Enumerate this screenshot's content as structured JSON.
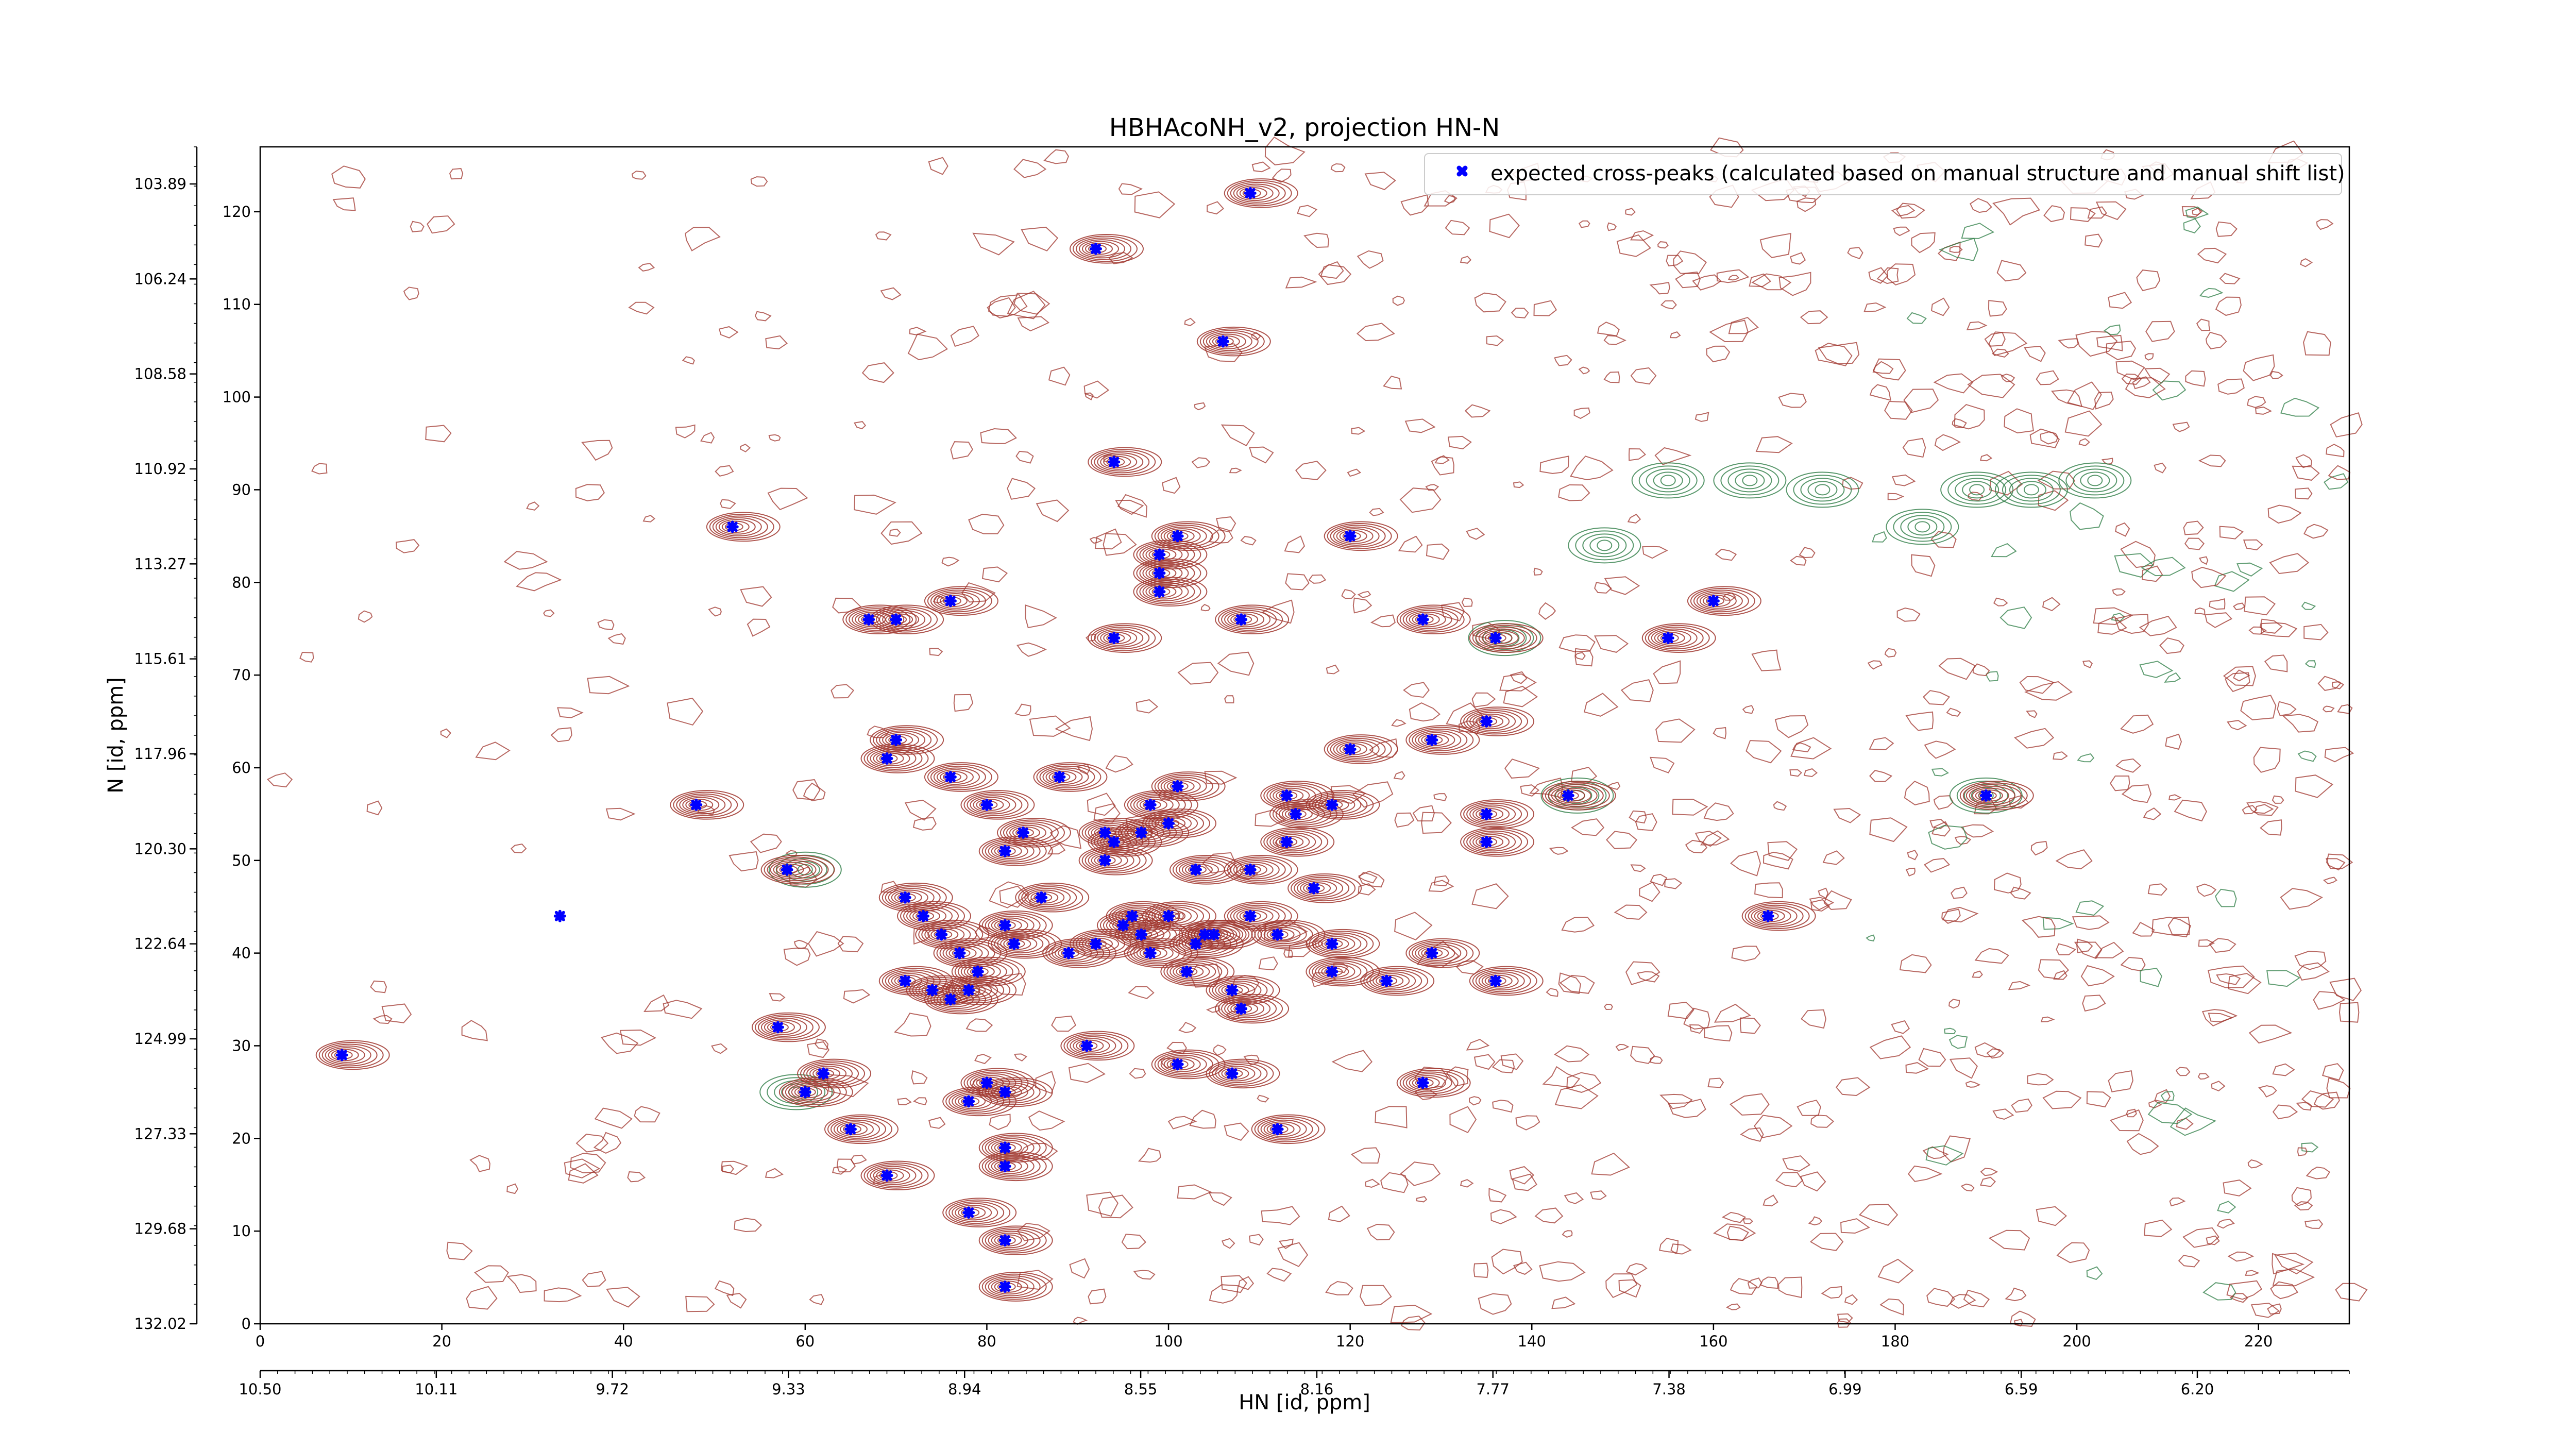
{
  "chart_data": {
    "type": "scatter",
    "title": "HBHAcoNH_v2, projection HN-N",
    "xlabel": "HN [id, ppm]",
    "ylabel": "N [id, ppm]",
    "x_index_range": [
      0,
      230
    ],
    "y_index_range": [
      0,
      127
    ],
    "x_index_ticks": [
      "0",
      "20",
      "40",
      "60",
      "80",
      "100",
      "120",
      "140",
      "160",
      "180",
      "200",
      "220"
    ],
    "y_index_ticks": [
      "0",
      "10",
      "20",
      "30",
      "40",
      "50",
      "60",
      "70",
      "80",
      "90",
      "100",
      "110",
      "120"
    ],
    "x_ppm_ticks": [
      "10.50",
      "10.11",
      "9.72",
      "9.33",
      "8.94",
      "8.55",
      "8.16",
      "7.77",
      "7.38",
      "6.99",
      "6.59",
      "6.20"
    ],
    "y_ppm_ticks": [
      "132.02",
      "129.68",
      "127.33",
      "124.99",
      "122.64",
      "120.30",
      "117.96",
      "115.61",
      "113.27",
      "110.92",
      "108.58",
      "106.24",
      "103.89"
    ],
    "legend": {
      "label": "expected cross-peaks (calculated based on manual structure and manual shift list)",
      "position": "top-right"
    },
    "grid": false,
    "colors": {
      "positive_contours": "#a0362e",
      "negative_contours": "#2e7d46",
      "markers": "#0000ff"
    },
    "series": [
      {
        "name": "expected cross-peaks (calculated based on manual structure and manual shift list)",
        "points": [
          [
            109,
            122
          ],
          [
            92,
            116
          ],
          [
            106,
            106
          ],
          [
            94,
            93
          ],
          [
            52,
            86
          ],
          [
            101,
            85
          ],
          [
            99,
            83
          ],
          [
            99,
            81
          ],
          [
            99,
            79
          ],
          [
            120,
            85
          ],
          [
            67,
            76
          ],
          [
            70,
            76
          ],
          [
            76,
            78
          ],
          [
            94,
            74
          ],
          [
            108,
            76
          ],
          [
            128,
            76
          ],
          [
            136,
            74
          ],
          [
            160,
            78
          ],
          [
            155,
            74
          ],
          [
            70,
            63
          ],
          [
            69,
            61
          ],
          [
            76,
            59
          ],
          [
            88,
            59
          ],
          [
            120,
            62
          ],
          [
            129,
            63
          ],
          [
            135,
            65
          ],
          [
            48,
            56
          ],
          [
            58,
            49
          ],
          [
            80,
            56
          ],
          [
            84,
            53
          ],
          [
            82,
            51
          ],
          [
            93,
            53
          ],
          [
            94,
            52
          ],
          [
            93,
            50
          ],
          [
            97,
            53
          ],
          [
            98,
            56
          ],
          [
            100,
            54
          ],
          [
            101,
            58
          ],
          [
            103,
            49
          ],
          [
            109,
            49
          ],
          [
            113,
            57
          ],
          [
            114,
            55
          ],
          [
            118,
            56
          ],
          [
            113,
            52
          ],
          [
            116,
            47
          ],
          [
            71,
            46
          ],
          [
            73,
            44
          ],
          [
            75,
            42
          ],
          [
            77,
            40
          ],
          [
            79,
            38
          ],
          [
            78,
            36
          ],
          [
            74,
            36
          ],
          [
            71,
            37
          ],
          [
            76,
            35
          ],
          [
            82,
            43
          ],
          [
            83,
            41
          ],
          [
            86,
            46
          ],
          [
            89,
            40
          ],
          [
            92,
            41
          ],
          [
            95,
            43
          ],
          [
            96,
            44
          ],
          [
            97,
            42
          ],
          [
            98,
            40
          ],
          [
            100,
            44
          ],
          [
            102,
            38
          ],
          [
            103,
            41
          ],
          [
            104,
            42
          ],
          [
            105,
            42
          ],
          [
            109,
            44
          ],
          [
            112,
            42
          ],
          [
            118,
            41
          ],
          [
            118,
            38
          ],
          [
            124,
            37
          ],
          [
            129,
            40
          ],
          [
            135,
            55
          ],
          [
            135,
            52
          ],
          [
            136,
            37
          ],
          [
            144,
            57
          ],
          [
            166,
            44
          ],
          [
            190,
            57
          ],
          [
            33,
            44
          ],
          [
            57,
            32
          ],
          [
            62,
            27
          ],
          [
            60,
            25
          ],
          [
            65,
            21
          ],
          [
            69,
            16
          ],
          [
            78,
            24
          ],
          [
            80,
            26
          ],
          [
            82,
            25
          ],
          [
            82,
            19
          ],
          [
            82,
            17
          ],
          [
            91,
            30
          ],
          [
            101,
            28
          ],
          [
            107,
            27
          ],
          [
            107,
            36
          ],
          [
            108,
            34
          ],
          [
            112,
            21
          ],
          [
            128,
            26
          ],
          [
            78,
            12
          ],
          [
            82,
            9
          ],
          [
            82,
            4
          ],
          [
            9,
            29
          ]
        ]
      }
    ]
  }
}
